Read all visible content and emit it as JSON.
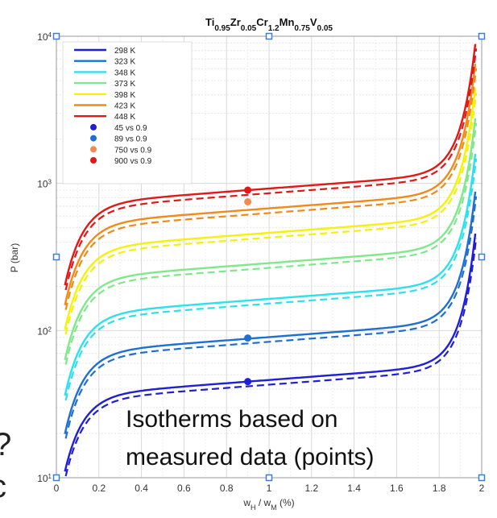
{
  "chart_data": {
    "type": "line",
    "title": {
      "base": "Ti",
      "parts": [
        {
          "t": "Ti",
          "s": false
        },
        {
          "t": "0.95",
          "s": true
        },
        {
          "t": "Zr",
          "s": false
        },
        {
          "t": "0.05",
          "s": true
        },
        {
          "t": "Cr",
          "s": false
        },
        {
          "t": "1.2",
          "s": true
        },
        {
          "t": "Mn",
          "s": false
        },
        {
          "t": "0.75",
          "s": true
        },
        {
          "t": "V",
          "s": false
        },
        {
          "t": "0.05",
          "s": true
        }
      ]
    },
    "xlabel": {
      "parts": [
        {
          "t": "w",
          "s": false
        },
        {
          "t": "H",
          "s": true
        },
        {
          "t": " / w",
          "s": false
        },
        {
          "t": "M",
          "s": true
        },
        {
          "t": " (%)",
          "s": false
        }
      ]
    },
    "ylabel": "P (bar)",
    "xlim": [
      0,
      2
    ],
    "ylim": [
      10,
      10000
    ],
    "yscale": "log",
    "grid": true,
    "legend_position": "top-left",
    "x_ticks": [
      "0",
      "0.2",
      "0.4",
      "0.6",
      "0.8",
      "1",
      "1.2",
      "1.4",
      "1.6",
      "1.8",
      "2"
    ],
    "y_ticks": [
      {
        "base": "10",
        "exp": "1"
      },
      {
        "base": "10",
        "exp": "2"
      },
      {
        "base": "10",
        "exp": "3"
      },
      {
        "base": "10",
        "exp": "4"
      }
    ],
    "series": [
      {
        "name": "298 K",
        "color": "#1f1fd6",
        "plateau": 45
      },
      {
        "name": "323 K",
        "color": "#1f6fd0",
        "plateau": 88
      },
      {
        "name": "348 K",
        "color": "#2ee0ee",
        "plateau": 160
      },
      {
        "name": "373 K",
        "color": "#7fe88a",
        "plateau": 280
      },
      {
        "name": "398 K",
        "color": "#f2f20a",
        "plateau": 450
      },
      {
        "name": "423 K",
        "color": "#f08a18",
        "plateau": 660
      },
      {
        "name": "448 K",
        "color": "#e01818",
        "plateau": 900
      }
    ],
    "points": [
      {
        "name": "45 vs 0.9",
        "x": 0.9,
        "y": 45,
        "color": "#1f1fd6"
      },
      {
        "name": "89 vs 0.9",
        "x": 0.9,
        "y": 89,
        "color": "#1f6fd0"
      },
      {
        "name": "750 vs 0.9",
        "x": 0.9,
        "y": 750,
        "color": "#f08a50"
      },
      {
        "name": "900 vs 0.9",
        "x": 0.9,
        "y": 900,
        "color": "#e01818"
      }
    ],
    "annotation": [
      "Isotherms based on",
      "measured data (points)"
    ]
  }
}
